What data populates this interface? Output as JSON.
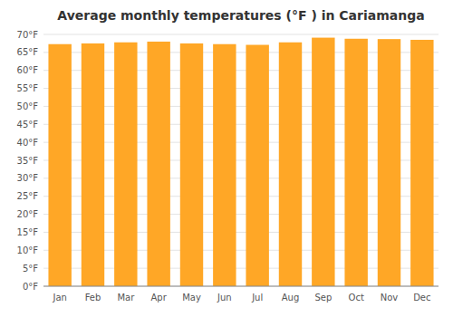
{
  "chart_data": {
    "type": "bar",
    "title": "Average monthly temperatures (°F ) in Cariamanga",
    "categories": [
      "Jan",
      "Feb",
      "Mar",
      "Apr",
      "May",
      "Jun",
      "Jul",
      "Aug",
      "Sep",
      "Oct",
      "Nov",
      "Dec"
    ],
    "values": [
      67.3,
      67.5,
      67.8,
      68.0,
      67.5,
      67.3,
      67.1,
      67.8,
      69.1,
      68.8,
      68.7,
      68.5
    ],
    "color": "#FFA726",
    "ylim": [
      0,
      70
    ],
    "yticks": [
      {
        "value": 0,
        "label": "0°F"
      },
      {
        "value": 5,
        "label": "5°F"
      },
      {
        "value": 10,
        "label": "10°F"
      },
      {
        "value": 15,
        "label": "15°F"
      },
      {
        "value": 20,
        "label": "20°F"
      },
      {
        "value": 25,
        "label": "25°F"
      },
      {
        "value": 30,
        "label": "30°F"
      },
      {
        "value": 35,
        "label": "35°F"
      },
      {
        "value": 40,
        "label": "40°F"
      },
      {
        "value": 45,
        "label": "45°F"
      },
      {
        "value": 50,
        "label": "50°F"
      },
      {
        "value": 55,
        "label": "55°F"
      },
      {
        "value": 60,
        "label": "60°F"
      },
      {
        "value": 65,
        "label": "65°F"
      },
      {
        "value": 70,
        "label": "70°F"
      }
    ],
    "grid": true
  }
}
